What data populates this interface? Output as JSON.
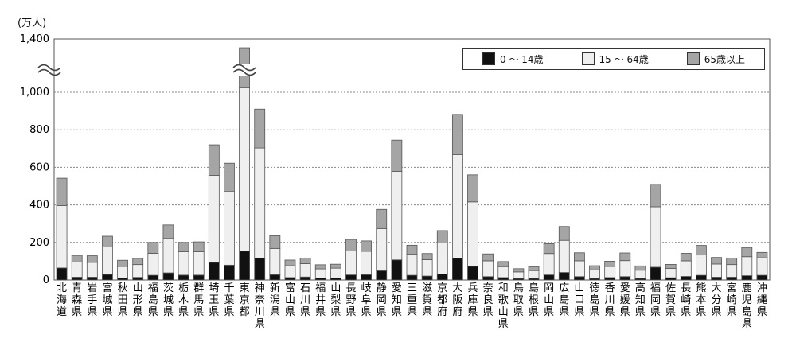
{
  "chart_data": {
    "type": "bar",
    "stacked": true,
    "unit_label": "(万人)",
    "ylim": [
      0,
      1400
    ],
    "yticks": [
      0,
      200,
      400,
      600,
      800,
      "1,000",
      "1,400"
    ],
    "categories": [
      "北海道",
      "青森県",
      "岩手県",
      "宮城県",
      "秋田県",
      "山形県",
      "福島県",
      "茨城県",
      "栃木県",
      "群馬県",
      "埼玉県",
      "千葉県",
      "東京都",
      "神奈川県",
      "新潟県",
      "富山県",
      "石川県",
      "福井県",
      "山梨県",
      "長野県",
      "岐阜県",
      "静岡県",
      "愛知県",
      "三重県",
      "滋賀県",
      "京都府",
      "大阪府",
      "兵庫県",
      "奈良県",
      "和歌山県",
      "鳥取県",
      "島根県",
      "岡山県",
      "広島県",
      "山口県",
      "徳島県",
      "香川県",
      "愛媛県",
      "高知県",
      "福岡県",
      "佐賀県",
      "長崎県",
      "熊本県",
      "大分県",
      "宮崎県",
      "鹿児島県",
      "沖縄県"
    ],
    "series": [
      {
        "name": "0 ～ 14歳",
        "color": "#111111",
        "values": [
          64,
          15,
          15,
          30,
          11,
          14,
          25,
          38,
          26,
          26,
          94,
          79,
          154,
          117,
          28,
          13,
          16,
          11,
          11,
          27,
          28,
          49,
          107,
          25,
          21,
          32,
          116,
          73,
          18,
          13,
          8,
          9,
          27,
          40,
          18,
          9,
          13,
          18,
          9,
          68,
          12,
          19,
          25,
          15,
          15,
          23,
          25
        ]
      },
      {
        "name": "15 ～ 64歳",
        "color": "#efefef",
        "values": [
          332,
          81,
          79,
          146,
          61,
          68,
          117,
          183,
          125,
          124,
          463,
          392,
          880,
          586,
          140,
          63,
          71,
          48,
          52,
          128,
          125,
          225,
          471,
          112,
          87,
          165,
          552,
          343,
          84,
          58,
          35,
          41,
          114,
          171,
          84,
          45,
          59,
          85,
          43,
          322,
          49,
          83,
          108,
          70,
          67,
          101,
          93
        ]
      },
      {
        "name": "65歳以上",
        "color": "#a5a5a5",
        "values": [
          146,
          35,
          35,
          57,
          33,
          33,
          58,
          72,
          49,
          53,
          163,
          151,
          300,
          207,
          68,
          30,
          30,
          22,
          21,
          61,
          55,
          102,
          167,
          48,
          33,
          66,
          214,
          144,
          37,
          27,
          17,
          21,
          52,
          74,
          43,
          22,
          28,
          41,
          23,
          119,
          22,
          40,
          51,
          35,
          34,
          49,
          29
        ]
      }
    ],
    "axis_breaks": [
      0,
      12
    ],
    "legend_position": "top-right",
    "grid": true
  }
}
